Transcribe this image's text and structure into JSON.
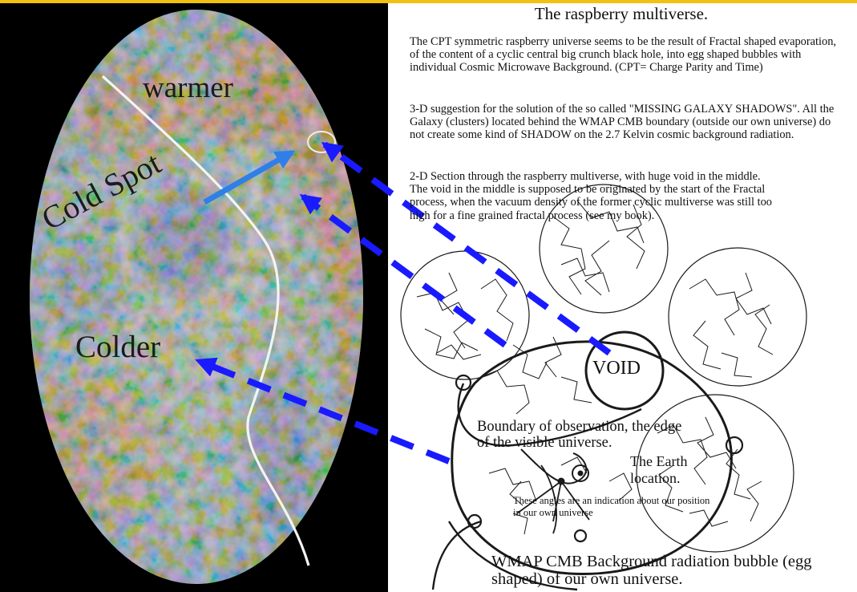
{
  "title": "The raspberry multiverse.",
  "paragraphs": {
    "p1": "The CPT symmetric raspberry universe seems to be the result of Fractal shaped evaporation, of the content of a cyclic central big crunch black hole, into egg shaped bubbles with individual Cosmic Microwave Background. (CPT= Charge Parity and Time)",
    "p2": "3-D suggestion for the solution of the so called \"MISSING GALAXY SHADOWS\".       All the Galaxy (clusters) located behind the WMAP CMB boundary (outside our own universe) do not create some kind of SHADOW on the 2.7 Kelvin cosmic background radiation.",
    "p3_lines": [
      "2-D Section through the raspberry multiverse, with huge void in the middle.",
      "The void in the middle is supposed to be originated by the start of the Fractal",
      "process, when the vacuum density of the former cyclic multiverse was still too",
      "high for a fine grained fractal process (see my book)."
    ]
  },
  "map_labels": {
    "warmer": "warmer",
    "cold_spot": "Cold Spot",
    "colder": "Colder"
  },
  "diagram_labels": {
    "void": "VOID",
    "boundary": "Boundary of observation, the edge of the visible universe.",
    "earth": "The Earth location.",
    "angles": "These angles are an indication about our position in our own universe",
    "wmap": "WMAP CMB Background radiation bubble (egg shaped) of our own universe."
  },
  "colors": {
    "arrow_blue": "#1a1aff",
    "cold_spot_arrow": "#2f7fe8",
    "top_bar": "#f2c010",
    "cmb_warm": "#d2733a",
    "cmb_cold": "#3a5fbf",
    "cmb_mid": "#8fc4bf"
  }
}
